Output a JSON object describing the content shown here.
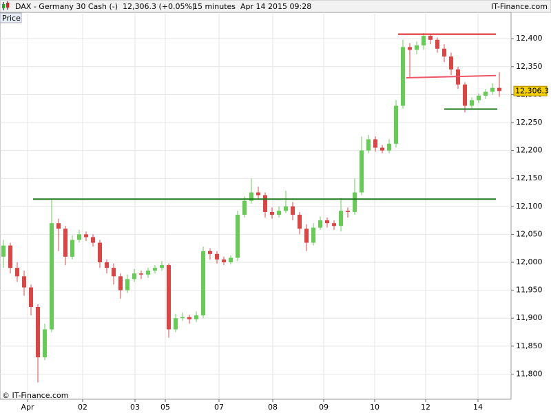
{
  "chart_data": {
    "type": "candlestick",
    "title": "DAX - Germany 30 Cash (-)",
    "quote": "12,306.3 (+0.05%)",
    "timeframe": "15 minutes  Apr 14 2015 09:28",
    "brand": "IT-Finance.com",
    "panel_label": "Price",
    "copyright": "© IT-Finance.com",
    "up_color": "#66cc55",
    "down_color": "#dd4444",
    "grid": true,
    "xlim": [
      -0.5,
      73.7
    ],
    "ylim": [
      11755,
      12447
    ],
    "xticks": [
      {
        "value": 3.5,
        "label": "Apr"
      },
      {
        "value": 11.5,
        "label": "02"
      },
      {
        "value": 19.1,
        "label": "03"
      },
      {
        "value": 23.5,
        "label": "05"
      },
      {
        "value": 31.3,
        "label": "07"
      },
      {
        "value": 39.1,
        "label": "08"
      },
      {
        "value": 46.5,
        "label": "09"
      },
      {
        "value": 53.9,
        "label": "10"
      },
      {
        "value": 61.3,
        "label": "12"
      },
      {
        "value": 68.9,
        "label": "14"
      }
    ],
    "yticks": [
      {
        "value": 11800,
        "label": "11,800"
      },
      {
        "value": 11850,
        "label": "11,850"
      },
      {
        "value": 11900,
        "label": "11,900"
      },
      {
        "value": 11950,
        "label": "11,950"
      },
      {
        "value": 12000,
        "label": "12,000"
      },
      {
        "value": 12050,
        "label": "12,050"
      },
      {
        "value": 12100,
        "label": "12,100"
      },
      {
        "value": 12150,
        "label": "12,150"
      },
      {
        "value": 12200,
        "label": "12,200"
      },
      {
        "value": 12250,
        "label": "12,250"
      },
      {
        "value": 12300,
        "label": "12,300"
      },
      {
        "value": 12350,
        "label": "12,350"
      },
      {
        "value": 12400,
        "label": "12,400"
      }
    ],
    "last_price": 12306.3,
    "last_price_label": "12,306.3",
    "open": [
      12010,
      12030,
      11990,
      11975,
      11955,
      11920,
      11830,
      11880,
      12070,
      12060,
      12010,
      12040,
      12050,
      12045,
      12035,
      12000,
      11990,
      11975,
      11950,
      11970,
      11980,
      11978,
      11985,
      11990,
      11995,
      11880,
      11900,
      11902,
      11898,
      11905,
      12020,
      12015,
      12005,
      12000,
      12008,
      12085,
      12110,
      12125,
      12120,
      12090,
      12085,
      12092,
      12100,
      12085,
      12060,
      12035,
      12062,
      12075,
      12070,
      12065,
      12092,
      12090,
      12125,
      12200,
      12220,
      12205,
      12200,
      12212,
      12280,
      12385,
      12380,
      12388,
      12405,
      12398,
      12382,
      12368,
      12345,
      12318,
      12280,
      12290,
      12298,
      12305,
      12312
    ],
    "high": [
      12040,
      12035,
      12000,
      11985,
      11960,
      11925,
      11890,
      12112,
      12078,
      12065,
      12048,
      12058,
      12055,
      12050,
      12040,
      12005,
      11998,
      11980,
      11978,
      11988,
      11985,
      11990,
      11995,
      12002,
      11998,
      11908,
      11910,
      11906,
      11912,
      12028,
      12025,
      12020,
      12010,
      12012,
      12092,
      12118,
      12150,
      12135,
      12125,
      12098,
      12100,
      12128,
      12108,
      12090,
      12068,
      12070,
      12082,
      12080,
      12075,
      12115,
      12098,
      12150,
      12225,
      12228,
      12225,
      12210,
      12220,
      12290,
      12398,
      12392,
      12395,
      12410,
      12408,
      12402,
      12390,
      12375,
      12350,
      12322,
      12295,
      12302,
      12310,
      12320,
      12340
    ],
    "low": [
      11990,
      11980,
      11965,
      11940,
      11905,
      11785,
      11825,
      11875,
      12020,
      11995,
      12005,
      12035,
      12038,
      12028,
      11990,
      11980,
      11960,
      11935,
      11945,
      11965,
      11970,
      11972,
      11980,
      11985,
      11865,
      11875,
      11895,
      11890,
      11893,
      11900,
      12005,
      11998,
      11995,
      11996,
      12002,
      12080,
      12105,
      12112,
      12080,
      12078,
      12080,
      12088,
      12075,
      12050,
      12020,
      12030,
      12058,
      12062,
      12058,
      12055,
      12080,
      12085,
      12120,
      12195,
      12198,
      12195,
      12195,
      12205,
      12275,
      12330,
      12372,
      12380,
      12390,
      12375,
      12358,
      12335,
      12310,
      12268,
      12275,
      12285,
      12292,
      12300,
      12296
    ],
    "close": [
      12030,
      11990,
      11975,
      11955,
      11920,
      11830,
      11880,
      12070,
      12060,
      12010,
      12040,
      12050,
      12045,
      12035,
      12000,
      11990,
      11975,
      11950,
      11970,
      11980,
      11978,
      11985,
      11990,
      11995,
      11880,
      11900,
      11902,
      11898,
      11905,
      12020,
      12015,
      12005,
      12000,
      12008,
      12085,
      12110,
      12125,
      12120,
      12090,
      12085,
      12092,
      12100,
      12085,
      12060,
      12035,
      12062,
      12075,
      12070,
      12065,
      12092,
      12090,
      12125,
      12200,
      12220,
      12205,
      12200,
      12212,
      12280,
      12385,
      12380,
      12388,
      12405,
      12398,
      12382,
      12368,
      12345,
      12318,
      12280,
      12290,
      12298,
      12305,
      12312,
      12306.3
    ],
    "lines": [
      {
        "color": "#1a7a1a",
        "x": [
          4.3,
          71.5
        ],
        "y": [
          12113,
          12113
        ]
      },
      {
        "color": "#dd2222",
        "x": [
          57.3,
          71.5
        ],
        "y": [
          12408,
          12408
        ]
      },
      {
        "color": "#ee5566",
        "x": [
          58.5,
          71.5
        ],
        "y": [
          12330,
          12334
        ]
      },
      {
        "color": "#1a7a1a",
        "x": [
          64,
          71.7
        ],
        "y": [
          12274,
          12274
        ]
      }
    ]
  }
}
